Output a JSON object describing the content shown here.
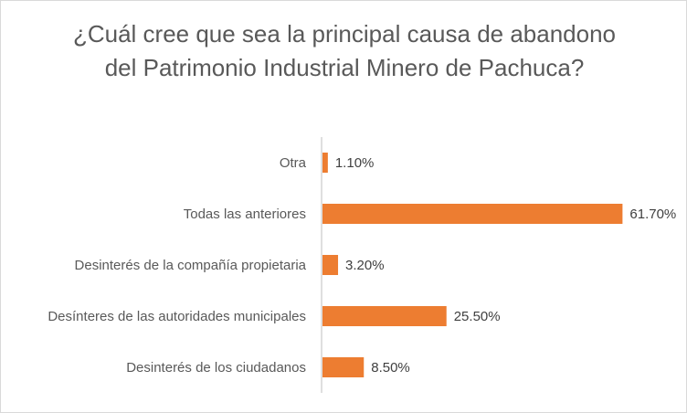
{
  "chart_data": {
    "type": "bar",
    "orientation": "horizontal",
    "title": "¿Cuál cree que sea la principal causa de abandono del Patrimonio Industrial Minero de Pachuca?",
    "categories": [
      "Otra",
      "Todas las anteriores",
      "Desinterés de la compañía propietaria",
      "Desínteres de las autoridades municipales",
      "Desinterés de los ciudadanos"
    ],
    "values": [
      1.1,
      61.7,
      3.2,
      25.5,
      8.5
    ],
    "value_labels": [
      "1.10%",
      "61.70%",
      "3.20%",
      "25.50%",
      "8.50%"
    ],
    "unit": "%",
    "xlim": [
      0,
      62
    ],
    "grid": false,
    "legend": "none",
    "colors": {
      "bar": "#ED7D31",
      "axis": "#BFBFBF",
      "title": "#595959",
      "text": "#595959"
    }
  }
}
